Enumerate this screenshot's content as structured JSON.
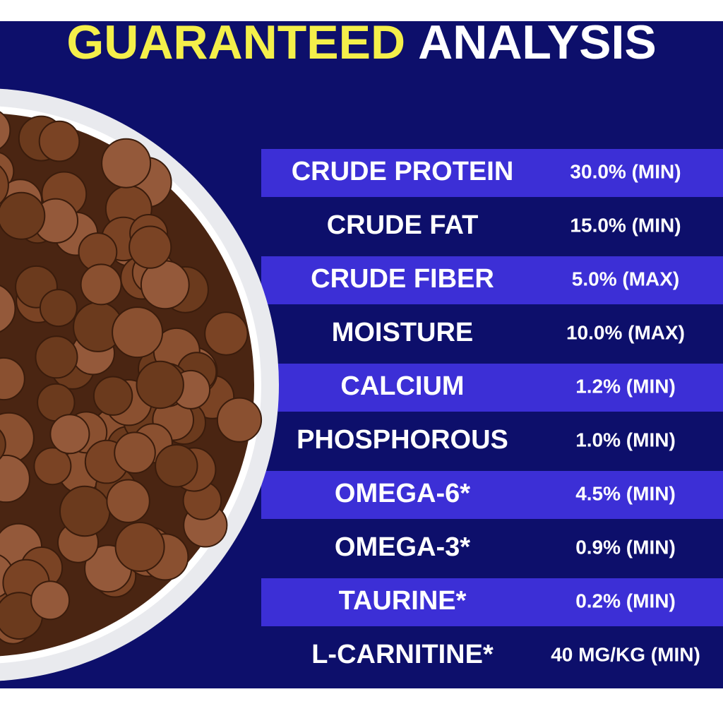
{
  "header": {
    "title_highlight": "GUARANTEED",
    "title_rest": "ANALYSIS"
  },
  "table": {
    "rows": [
      [
        "CRUDE PROTEIN",
        "30.0% (MIN)"
      ],
      [
        "CRUDE FAT",
        "15.0% (MIN)"
      ],
      [
        "CRUDE FIBER",
        "5.0% (MAX)"
      ],
      [
        "MOISTURE",
        "10.0% (MAX)"
      ],
      [
        "CALCIUM",
        "1.2% (MIN)"
      ],
      [
        "PHOSPHOROUS",
        "1.0% (MIN)"
      ],
      [
        "OMEGA-6*",
        "4.5% (MIN)"
      ],
      [
        "OMEGA-3*",
        "0.9% (MIN)"
      ],
      [
        "TAURINE*",
        "0.2% (MIN)"
      ],
      [
        "L-CARNITINE*",
        "40 MG/KG (MIN)"
      ]
    ]
  }
}
